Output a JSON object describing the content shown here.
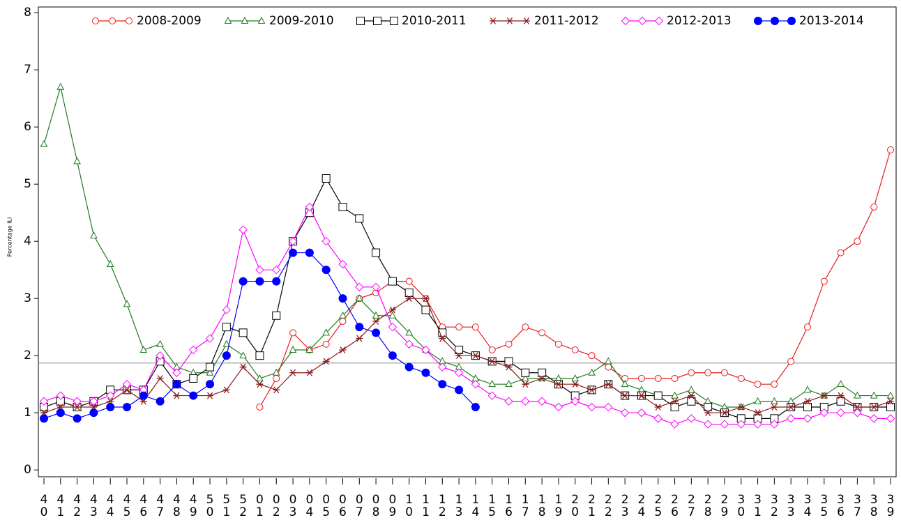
{
  "chart_data": {
    "type": "line",
    "y_label": "Percentage ILI",
    "categories": [
      "40",
      "41",
      "42",
      "43",
      "44",
      "45",
      "46",
      "47",
      "48",
      "49",
      "50",
      "51",
      "52",
      "01",
      "02",
      "03",
      "04",
      "05",
      "06",
      "07",
      "08",
      "09",
      "10",
      "11",
      "12",
      "13",
      "14",
      "15",
      "16",
      "17",
      "18",
      "19",
      "20",
      "21",
      "22",
      "23",
      "24",
      "25",
      "26",
      "27",
      "28",
      "29",
      "30",
      "31",
      "32",
      "33",
      "34",
      "35",
      "36",
      "37",
      "38",
      "39"
    ],
    "ylim": [
      -0.12,
      8.1
    ],
    "yticks": [
      0,
      1,
      2,
      3,
      4,
      5,
      6,
      7,
      8
    ],
    "baseline": 1.87,
    "legend": "top",
    "series": [
      {
        "name": "2008-2009",
        "color": "#e8191b",
        "marker": "circle",
        "values": [
          null,
          null,
          null,
          null,
          null,
          null,
          null,
          null,
          null,
          null,
          null,
          null,
          null,
          1.1,
          1.6,
          2.4,
          2.1,
          2.2,
          2.6,
          3.0,
          3.1,
          3.3,
          3.3,
          3.0,
          2.5,
          2.5,
          2.5,
          2.1,
          2.2,
          2.5,
          2.4,
          2.2,
          2.1,
          2.0,
          1.8,
          1.6,
          1.6,
          1.6,
          1.6,
          1.7,
          1.7,
          1.7,
          1.6,
          1.5,
          1.5,
          1.9,
          2.5,
          3.3,
          3.8,
          4.0,
          4.6,
          5.6
        ]
      },
      {
        "name": "2009-2010",
        "color": "#1f7a1f",
        "marker": "triangle",
        "values": [
          5.7,
          6.7,
          5.4,
          4.1,
          3.6,
          2.9,
          2.1,
          2.2,
          1.8,
          1.7,
          1.7,
          2.2,
          2.0,
          1.6,
          1.7,
          2.1,
          2.1,
          2.4,
          2.7,
          3.0,
          2.7,
          2.7,
          2.4,
          2.1,
          1.9,
          1.8,
          1.6,
          1.5,
          1.5,
          1.6,
          1.6,
          1.6,
          1.6,
          1.7,
          1.9,
          1.5,
          1.4,
          1.3,
          1.3,
          1.4,
          1.2,
          1.1,
          1.1,
          1.2,
          1.2,
          1.2,
          1.4,
          1.3,
          1.5,
          1.3,
          1.3,
          1.3
        ]
      },
      {
        "name": "2010-2011",
        "color": "#000000",
        "marker": "square",
        "values": [
          1.1,
          1.2,
          1.1,
          1.2,
          1.4,
          1.4,
          1.4,
          1.9,
          1.5,
          1.6,
          1.8,
          2.5,
          2.4,
          2.0,
          2.7,
          4.0,
          4.5,
          5.1,
          4.6,
          4.4,
          3.8,
          3.3,
          3.1,
          2.8,
          2.4,
          2.1,
          2.0,
          1.9,
          1.9,
          1.7,
          1.7,
          1.5,
          1.3,
          1.4,
          1.5,
          1.3,
          1.3,
          1.3,
          1.1,
          1.2,
          1.1,
          1.0,
          0.9,
          0.9,
          0.9,
          1.1,
          1.1,
          1.1,
          1.2,
          1.1,
          1.1,
          1.1
        ]
      },
      {
        "name": "2011-2012",
        "color": "#8b1a1a",
        "marker": "star",
        "values": [
          1.0,
          1.1,
          1.1,
          1.1,
          1.2,
          1.4,
          1.2,
          1.6,
          1.3,
          1.3,
          1.3,
          1.4,
          1.8,
          1.5,
          1.4,
          1.7,
          1.7,
          1.9,
          2.1,
          2.3,
          2.6,
          2.8,
          3.0,
          3.0,
          2.3,
          2.0,
          2.0,
          1.9,
          1.8,
          1.5,
          1.6,
          1.5,
          1.5,
          1.4,
          1.5,
          1.3,
          1.3,
          1.1,
          1.2,
          1.3,
          1.0,
          1.0,
          1.1,
          1.0,
          1.1,
          1.1,
          1.2,
          1.3,
          1.3,
          1.1,
          1.1,
          1.2
        ]
      },
      {
        "name": "2012-2013",
        "color": "#ff00ff",
        "marker": "diamond",
        "values": [
          1.2,
          1.3,
          1.2,
          1.2,
          1.3,
          1.5,
          1.4,
          2.0,
          1.7,
          2.1,
          2.3,
          2.8,
          4.2,
          3.5,
          3.5,
          4.0,
          4.6,
          4.0,
          3.6,
          3.2,
          3.2,
          2.5,
          2.2,
          2.1,
          1.8,
          1.7,
          1.5,
          1.3,
          1.2,
          1.2,
          1.2,
          1.1,
          1.2,
          1.1,
          1.1,
          1.0,
          1.0,
          0.9,
          0.8,
          0.9,
          0.8,
          0.8,
          0.8,
          0.8,
          0.8,
          0.9,
          0.9,
          1.0,
          1.0,
          1.0,
          0.9,
          0.9
        ]
      },
      {
        "name": "2013-2014",
        "color": "#0000ff",
        "marker": "dot",
        "values": [
          0.9,
          1.0,
          0.9,
          1.0,
          1.1,
          1.1,
          1.3,
          1.2,
          1.5,
          1.3,
          1.5,
          2.0,
          3.3,
          3.3,
          3.3,
          3.8,
          3.8,
          3.5,
          3.0,
          2.5,
          2.4,
          2.0,
          1.8,
          1.7,
          1.5,
          1.4,
          1.1,
          null,
          null,
          null,
          null,
          null,
          null,
          null,
          null,
          null,
          null,
          null,
          null,
          null,
          null,
          null,
          null,
          null,
          null,
          null,
          null,
          null,
          null,
          null,
          null,
          null
        ]
      }
    ]
  }
}
